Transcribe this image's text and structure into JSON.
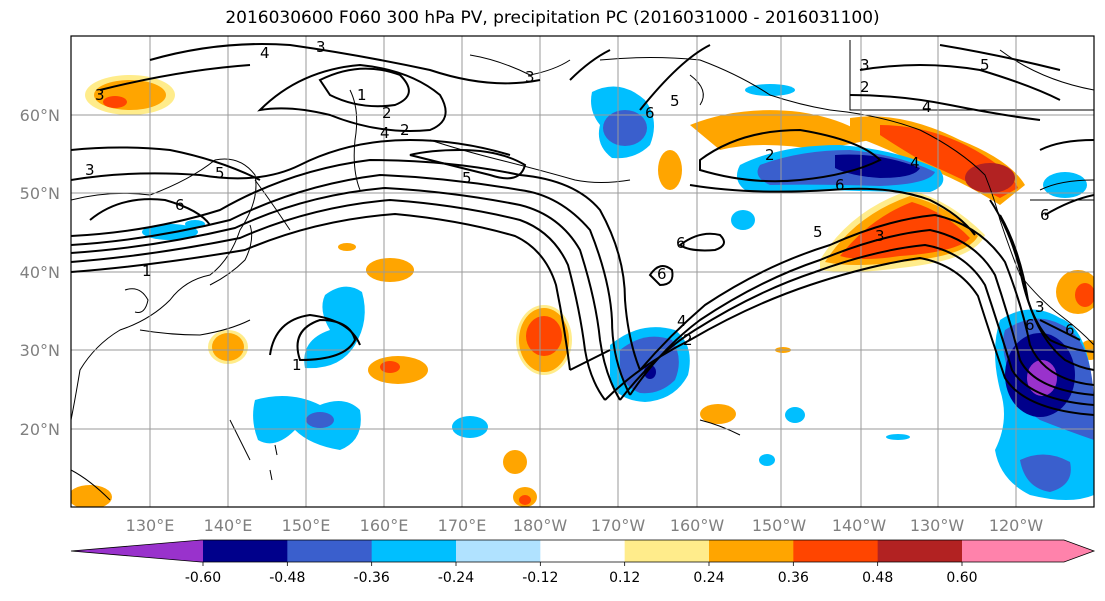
{
  "title": "2016030600 F060 300 hPa PV, precipitation PC (2016031000 - 2016031100)",
  "lon_ticks": [
    "130°E",
    "140°E",
    "150°E",
    "160°E",
    "170°E",
    "180°W",
    "170°W",
    "160°W",
    "150°W",
    "140°W",
    "130°W",
    "120°W"
  ],
  "lat_ticks": [
    "60°N",
    "50°N",
    "40°N",
    "30°N",
    "20°N"
  ],
  "colorbar": {
    "levels": [
      "-0.60",
      "-0.48",
      "-0.36",
      "-0.24",
      "-0.12",
      "0.12",
      "0.24",
      "0.36",
      "0.48",
      "0.60"
    ],
    "colors": [
      "#9932cc",
      "#00008b",
      "#3a5fcd",
      "#00bfff",
      "#b0e2ff",
      "#ffffff",
      "#ffec8b",
      "#ffa500",
      "#ff4500",
      "#b22222",
      "#ff82ab"
    ]
  },
  "contour_labels": [
    "4",
    "3",
    "3",
    "1",
    "2",
    "4",
    "5",
    "5",
    "6",
    "1",
    "3",
    "2",
    "6",
    "3",
    "6",
    "5",
    "6",
    "6",
    "4",
    "2",
    "3",
    "5",
    "4",
    "2",
    "3",
    "6",
    "6",
    "1",
    "6",
    "5",
    "3",
    "2",
    "4"
  ]
}
